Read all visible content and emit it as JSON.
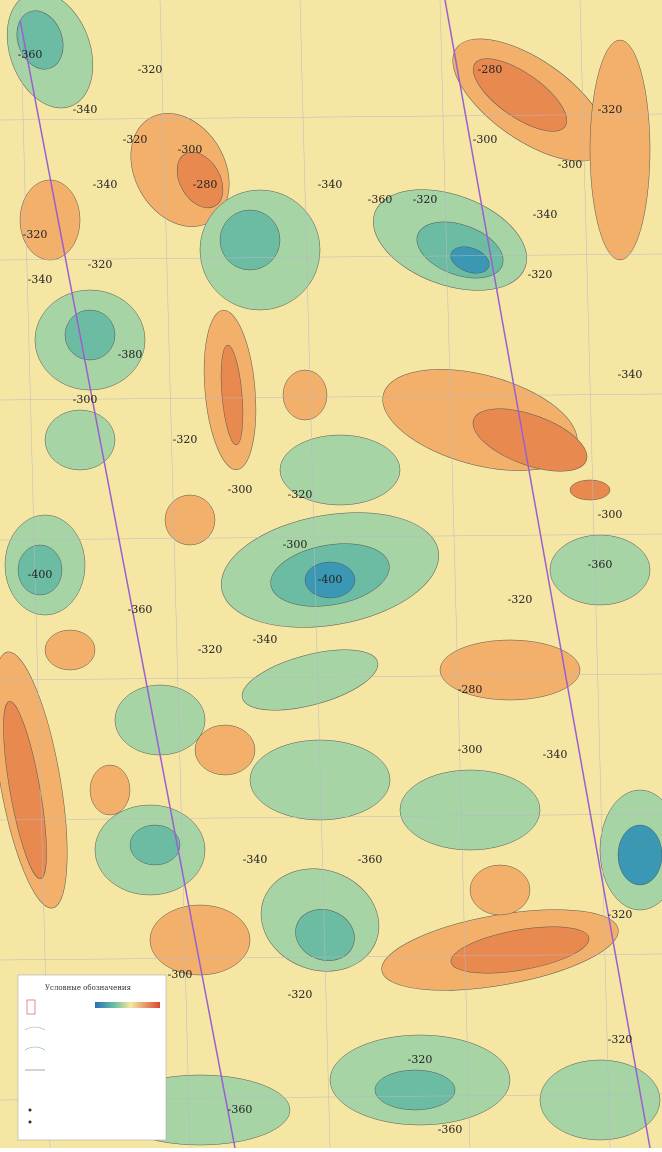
{
  "map": {
    "contour_labels": [
      "-360",
      "-320",
      "-340",
      "-320",
      "-300",
      "-280",
      "-340",
      "-320",
      "-320",
      "-340",
      "-380",
      "-300",
      "-320",
      "-300",
      "-320",
      "-340",
      "-360",
      "-320",
      "-280",
      "-300",
      "-300",
      "-320",
      "-340",
      "-320",
      "-340",
      "-300",
      "-360",
      "-320",
      "-400",
      "-300",
      "-340",
      "-320",
      "-360",
      "-400",
      "-280",
      "-300",
      "-340",
      "-340",
      "-360",
      "-320",
      "-300",
      "-320",
      "-320",
      "-360",
      "-360",
      "-320"
    ],
    "legend": {
      "title": "Условные обозначения"
    }
  }
}
